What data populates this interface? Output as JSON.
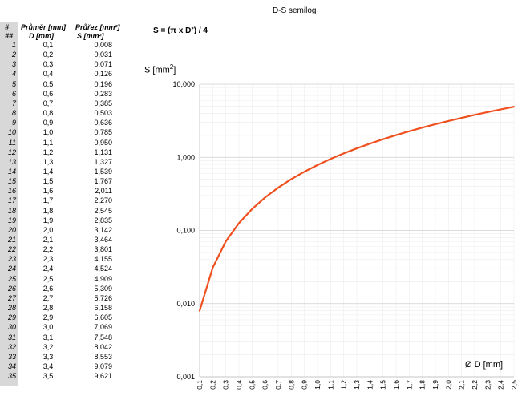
{
  "table": {
    "header_col0": [
      "#",
      "##"
    ],
    "header_col1": [
      "Průměr [mm]",
      "D [mm]"
    ],
    "header_col2": [
      "Průřez [mm²]",
      "S [mm²]"
    ],
    "rows": [
      {
        "n": "1",
        "d": "0,1",
        "s": "0,008"
      },
      {
        "n": "2",
        "d": "0,2",
        "s": "0,031"
      },
      {
        "n": "3",
        "d": "0,3",
        "s": "0,071"
      },
      {
        "n": "4",
        "d": "0,4",
        "s": "0,126"
      },
      {
        "n": "5",
        "d": "0,5",
        "s": "0,196"
      },
      {
        "n": "6",
        "d": "0,6",
        "s": "0,283"
      },
      {
        "n": "7",
        "d": "0,7",
        "s": "0,385"
      },
      {
        "n": "8",
        "d": "0,8",
        "s": "0,503"
      },
      {
        "n": "9",
        "d": "0,9",
        "s": "0,636"
      },
      {
        "n": "10",
        "d": "1,0",
        "s": "0,785"
      },
      {
        "n": "11",
        "d": "1,1",
        "s": "0,950"
      },
      {
        "n": "12",
        "d": "1,2",
        "s": "1,131"
      },
      {
        "n": "13",
        "d": "1,3",
        "s": "1,327"
      },
      {
        "n": "14",
        "d": "1,4",
        "s": "1,539"
      },
      {
        "n": "15",
        "d": "1,5",
        "s": "1,767"
      },
      {
        "n": "16",
        "d": "1,6",
        "s": "2,011"
      },
      {
        "n": "17",
        "d": "1,7",
        "s": "2,270"
      },
      {
        "n": "18",
        "d": "1,8",
        "s": "2,545"
      },
      {
        "n": "19",
        "d": "1,9",
        "s": "2,835"
      },
      {
        "n": "20",
        "d": "2,0",
        "s": "3,142"
      },
      {
        "n": "21",
        "d": "2,1",
        "s": "3,464"
      },
      {
        "n": "22",
        "d": "2,2",
        "s": "3,801"
      },
      {
        "n": "23",
        "d": "2,3",
        "s": "4,155"
      },
      {
        "n": "24",
        "d": "2,4",
        "s": "4,524"
      },
      {
        "n": "25",
        "d": "2,5",
        "s": "4,909"
      },
      {
        "n": "26",
        "d": "2,6",
        "s": "5,309"
      },
      {
        "n": "27",
        "d": "2,7",
        "s": "5,726"
      },
      {
        "n": "28",
        "d": "2,8",
        "s": "6,158"
      },
      {
        "n": "29",
        "d": "2,9",
        "s": "6,605"
      },
      {
        "n": "30",
        "d": "3,0",
        "s": "7,069"
      },
      {
        "n": "31",
        "d": "3,1",
        "s": "7,548"
      },
      {
        "n": "32",
        "d": "3,2",
        "s": "8,042"
      },
      {
        "n": "33",
        "d": "3,3",
        "s": "8,553"
      },
      {
        "n": "34",
        "d": "3,4",
        "s": "9,079"
      },
      {
        "n": "35",
        "d": "3,5",
        "s": "9,621"
      }
    ]
  },
  "formula": "S = (π x D²) / 4",
  "chart_data": {
    "type": "line",
    "title": "D-S semilog",
    "ylabel": "S [mm²]",
    "ylabel_base": "S [mm",
    "ylabel_sup": "2",
    "ylabel_end": "]",
    "xlabel": "Ø D [mm]",
    "y_scale": "log",
    "ylim": [
      0.001,
      10
    ],
    "xlim": [
      0.1,
      2.5
    ],
    "grid": true,
    "legend": "none",
    "y_ticks": [
      {
        "value": 0.001,
        "label": "0,001"
      },
      {
        "value": 0.01,
        "label": "0,010"
      },
      {
        "value": 0.1,
        "label": "0,100"
      },
      {
        "value": 1,
        "label": "1,000"
      },
      {
        "value": 10,
        "label": "10,000"
      }
    ],
    "x_tick_labels": [
      "0,1",
      "0,2",
      "0,3",
      "0,4",
      "0,5",
      "0,6",
      "0,7",
      "0,8",
      "0,9",
      "1,0",
      "1,1",
      "1,2",
      "1,3",
      "1,4",
      "1,5",
      "1,6",
      "1,7",
      "1,8",
      "1,9",
      "2,0",
      "2,1",
      "2,2",
      "2,3",
      "2,4",
      "2,5"
    ],
    "series": [
      {
        "color": "#f0501e",
        "x": [
          0.1,
          0.2,
          0.3,
          0.4,
          0.5,
          0.6,
          0.7,
          0.8,
          0.9,
          1.0,
          1.1,
          1.2,
          1.3,
          1.4,
          1.5,
          1.6,
          1.7,
          1.8,
          1.9,
          2.0,
          2.1,
          2.2,
          2.3,
          2.4,
          2.5
        ],
        "y": [
          0.008,
          0.031,
          0.071,
          0.126,
          0.196,
          0.283,
          0.385,
          0.503,
          0.636,
          0.785,
          0.95,
          1.131,
          1.327,
          1.539,
          1.767,
          2.011,
          2.27,
          2.545,
          2.835,
          3.142,
          3.464,
          3.801,
          4.155,
          4.524,
          4.909
        ]
      }
    ]
  }
}
